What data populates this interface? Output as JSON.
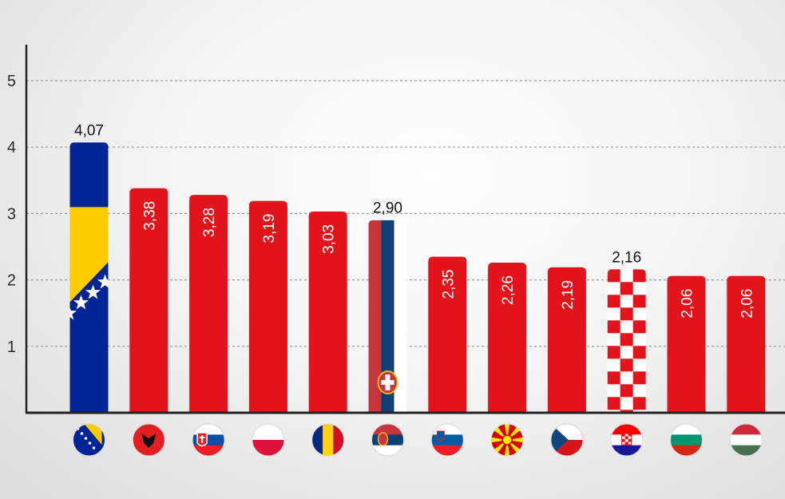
{
  "chart_data": {
    "type": "bar",
    "categories": [
      "Bosnia and Herzegovina",
      "Albania",
      "Slovakia",
      "Poland",
      "Romania",
      "Serbia",
      "Slovenia",
      "North Macedonia",
      "Czechia",
      "Croatia",
      "Bulgaria",
      "Hungary"
    ],
    "values": [
      4.07,
      3.38,
      3.28,
      3.19,
      3.03,
      2.9,
      2.35,
      2.26,
      2.19,
      2.16,
      2.06,
      2.06
    ],
    "value_labels": [
      "4,07",
      "3,38",
      "3,28",
      "3,19",
      "3,03",
      "2,90",
      "2,35",
      "2,26",
      "2,19",
      "2,16",
      "2,06",
      "2,06"
    ],
    "flag_icons": [
      "bosnia-flag-icon",
      "albania-flag-icon",
      "slovakia-flag-icon",
      "poland-flag-icon",
      "romania-flag-icon",
      "serbia-flag-icon",
      "slovenia-flag-icon",
      "north-macedonia-flag-icon",
      "czechia-flag-icon",
      "croatia-flag-icon",
      "bulgaria-flag-icon",
      "hungary-flag-icon"
    ],
    "bar_styles": [
      "flag-bosnia",
      "red",
      "red",
      "red",
      "red",
      "flag-serbia",
      "red",
      "red",
      "red",
      "flag-croatia",
      "red",
      "red"
    ],
    "yticks": [
      "1",
      "2",
      "3",
      "4",
      "5"
    ],
    "ylim": [
      0,
      5
    ],
    "grid": true,
    "grid_style": "dashed",
    "title": "",
    "xlabel": "",
    "ylabel": "",
    "colors": {
      "bar": "#e3131b",
      "grid": "#9a9a9a",
      "axis": "#222222"
    }
  }
}
